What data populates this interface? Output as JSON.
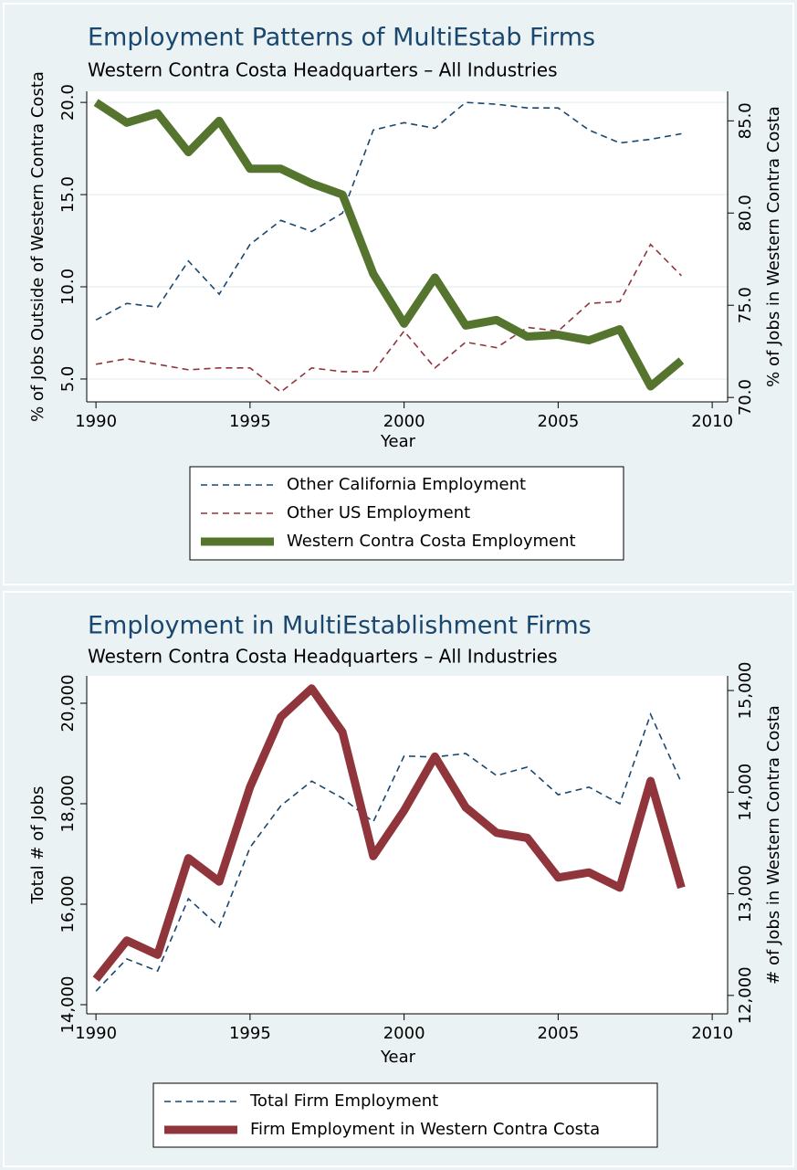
{
  "chart_data": [
    {
      "type": "line",
      "title": "Employment Patterns of MultiEstab Firms",
      "subtitle": "Western Contra Costa Headquarters – All Industries",
      "x_label": "Year",
      "y_label": "% of Jobs Outside of Western Contra Costa",
      "y2_label": "% of Jobs in Western Contra Costa",
      "x": [
        1990,
        1991,
        1992,
        1993,
        1994,
        1995,
        1996,
        1997,
        1998,
        1999,
        2000,
        2001,
        2002,
        2003,
        2004,
        2005,
        2006,
        2007,
        2008,
        2009
      ],
      "xlim": [
        1989.7,
        2010.5
      ],
      "xticks": [
        1990,
        1995,
        2000,
        2005,
        2010
      ],
      "ylim": [
        3.76,
        20.6
      ],
      "yticks": [
        {
          "value": 5,
          "label": "5.0"
        },
        {
          "value": 10,
          "label": "10.0"
        },
        {
          "value": 15,
          "label": "15.0"
        },
        {
          "value": 20,
          "label": "20.0"
        }
      ],
      "y2lim": [
        69.76,
        86.6
      ],
      "y2ticks": [
        {
          "value": 70,
          "label": "70.0"
        },
        {
          "value": 75,
          "label": "75.0"
        },
        {
          "value": 80,
          "label": "80.0"
        },
        {
          "value": 85,
          "label": "85.0"
        }
      ],
      "grid": true,
      "series": [
        {
          "name": "Other California Employment",
          "color": "#1a476f",
          "style": "dashed",
          "axis": "y",
          "values": [
            8.2,
            9.1,
            8.9,
            11.4,
            9.6,
            12.3,
            13.6,
            13.0,
            14.0,
            18.5,
            18.9,
            18.6,
            20.0,
            19.9,
            19.7,
            19.7,
            18.5,
            17.8,
            18.0,
            18.3
          ]
        },
        {
          "name": "Other US Employment",
          "color": "#90353b",
          "style": "dashed",
          "axis": "y",
          "values": [
            5.8,
            6.1,
            5.8,
            5.5,
            5.6,
            5.6,
            4.3,
            5.6,
            5.4,
            5.4,
            7.6,
            5.6,
            7.0,
            6.7,
            7.8,
            7.6,
            9.1,
            9.2,
            12.3,
            10.6
          ]
        },
        {
          "name": "Western Contra Costa Employment",
          "color": "#55752f",
          "style": "thick",
          "axis": "y2",
          "values": [
            86.0,
            84.9,
            85.4,
            83.3,
            85.0,
            82.4,
            82.4,
            81.6,
            81.0,
            76.7,
            74.0,
            76.5,
            73.9,
            74.2,
            73.3,
            73.4,
            73.1,
            73.7,
            70.6,
            72.0
          ]
        }
      ]
    },
    {
      "type": "line",
      "title": "Employment in MultiEstablishment Firms",
      "subtitle": "Western Contra Costa Headquarters – All Industries",
      "x_label": "Year",
      "y_label": "Total # of Jobs",
      "y2_label": "# of Jobs in Western Contra Costa",
      "x": [
        1990,
        1991,
        1992,
        1993,
        1994,
        1995,
        1996,
        1997,
        1998,
        1999,
        2000,
        2001,
        2002,
        2003,
        2004,
        2005,
        2006,
        2007,
        2008,
        2009
      ],
      "xlim": [
        1989.7,
        2010.5
      ],
      "xticks": [
        1990,
        1995,
        2000,
        2005,
        2010
      ],
      "ylim": [
        13818,
        20545
      ],
      "yticks": [
        {
          "value": 14000,
          "label": "14,000"
        },
        {
          "value": 16000,
          "label": "16,000"
        },
        {
          "value": 18000,
          "label": "18,000"
        },
        {
          "value": 20000,
          "label": "20,000"
        }
      ],
      "y2lim": [
        11819,
        15144
      ],
      "y2ticks": [
        {
          "value": 12000,
          "label": "12,000"
        },
        {
          "value": 13000,
          "label": "13,000"
        },
        {
          "value": 14000,
          "label": "14,000"
        },
        {
          "value": 15000,
          "label": "15,000"
        }
      ],
      "grid": false,
      "series": [
        {
          "name": "Total Firm Employment",
          "color": "#1a476f",
          "style": "dashed",
          "axis": "y",
          "values": [
            14270,
            14910,
            14670,
            16110,
            15550,
            17130,
            17960,
            18450,
            18110,
            17640,
            18950,
            18930,
            19000,
            18560,
            18730,
            18180,
            18330,
            18000,
            19780,
            18420
          ]
        },
        {
          "name": "Firm Employment in Western Contra Costa",
          "color": "#90353b",
          "style": "thick",
          "axis": "y2",
          "values": [
            12160,
            12540,
            12400,
            13350,
            13120,
            14050,
            14740,
            15020,
            14590,
            13370,
            13820,
            14350,
            13850,
            13600,
            13550,
            13160,
            13210,
            13060,
            14110,
            13060
          ]
        }
      ]
    }
  ]
}
